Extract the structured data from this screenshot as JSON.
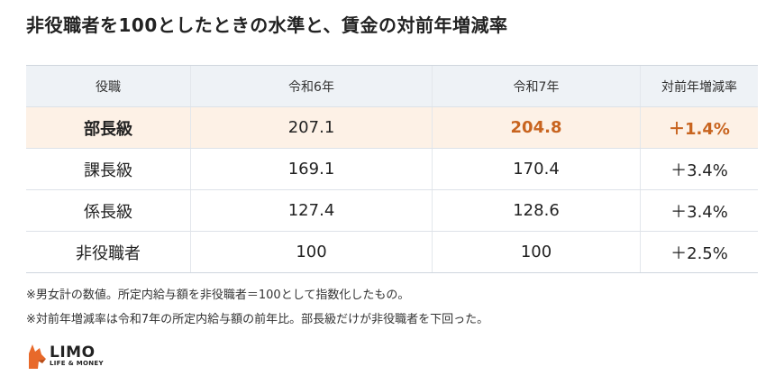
{
  "header": {
    "title": "非役職者を100としたときの水準と、賃金の対前年増減率"
  },
  "table": {
    "columns": [
      "役職",
      "令和6年",
      "令和7年",
      "対前年増減率"
    ],
    "rows": [
      [
        "部長級",
        "207.1",
        "204.8",
        "＋1.4%"
      ],
      [
        "課長級",
        "169.1",
        "170.4",
        "＋3.4%"
      ],
      [
        "係長級",
        "127.4",
        "128.6",
        "＋3.4%"
      ],
      [
        "非役職者",
        "100",
        "100",
        "＋2.5%"
      ]
    ]
  },
  "notes": [
    "※男女計の数値。所定内給与額を非役職者＝100として指数化したもの。",
    "※対前年増減率は令和7年の所定内給与額の前年比。部長級だけが非役職者を下回った。"
  ],
  "logo": {
    "name": "LIMO",
    "tagline": "LIFE & MONEY"
  }
}
